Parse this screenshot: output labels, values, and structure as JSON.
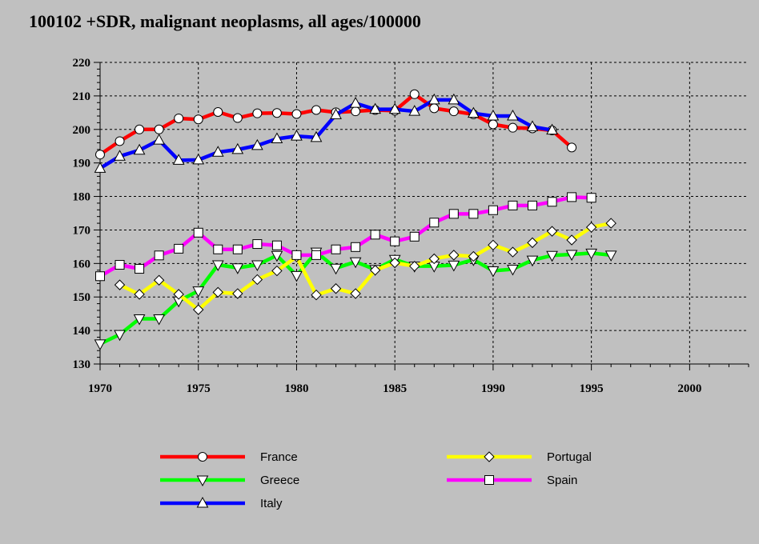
{
  "chart_data": {
    "type": "line",
    "title": "100102 +SDR, malignant neoplasms, all ages/100000",
    "xlabel": "",
    "ylabel": "",
    "xlim": [
      1970,
      2003
    ],
    "ylim": [
      130,
      220
    ],
    "xticks": [
      1970,
      1975,
      1980,
      1985,
      1990,
      1995,
      2000
    ],
    "yticks": [
      130,
      140,
      150,
      160,
      170,
      180,
      190,
      200,
      210,
      220
    ],
    "grid": true,
    "legend_position": "bottom",
    "series": [
      {
        "name": "France",
        "color": "#ff0000",
        "marker": "circle",
        "x": [
          1970,
          1971,
          1972,
          1973,
          1974,
          1975,
          1976,
          1977,
          1978,
          1979,
          1980,
          1981,
          1982,
          1983,
          1984,
          1985,
          1986,
          1987,
          1988,
          1989,
          1990,
          1991,
          1992,
          1993,
          1994
        ],
        "y": [
          192.5,
          196.5,
          200,
          200,
          203.3,
          203,
          205.2,
          203.4,
          204.8,
          204.9,
          204.6,
          205.8,
          205.1,
          205.4,
          205.8,
          205.6,
          210.5,
          206.3,
          205.4,
          204.5,
          201.5,
          200.5,
          200.3,
          199.7,
          194.6
        ]
      },
      {
        "name": "Greece",
        "color": "#00ff00",
        "marker": "triangle-down",
        "x": [
          1970,
          1971,
          1972,
          1973,
          1974,
          1975,
          1976,
          1977,
          1978,
          1979,
          1980,
          1981,
          1982,
          1983,
          1984,
          1985,
          1986,
          1987,
          1988,
          1989,
          1990,
          1991,
          1992,
          1993,
          1994,
          1995,
          1996
        ],
        "y": [
          136,
          138.8,
          143.5,
          143.5,
          148.8,
          151.8,
          159.6,
          158.7,
          159.6,
          162.4,
          156.4,
          163.4,
          158.6,
          160.5,
          158.2,
          161.2,
          159.2,
          159.2,
          159.5,
          161.1,
          157.8,
          158.3,
          161,
          162.4,
          162.7,
          163.1,
          162.5
        ]
      },
      {
        "name": "Italy",
        "color": "#0000ff",
        "marker": "triangle-up",
        "x": [
          1970,
          1971,
          1972,
          1973,
          1974,
          1975,
          1976,
          1977,
          1978,
          1979,
          1980,
          1981,
          1982,
          1983,
          1984,
          1985,
          1986,
          1987,
          1988,
          1989,
          1990,
          1991,
          1992,
          1993
        ],
        "y": [
          188.4,
          192,
          193.8,
          196.8,
          190.8,
          190.9,
          193.2,
          194,
          195.2,
          197.2,
          198,
          197.6,
          204.4,
          207.8,
          206,
          206,
          205.4,
          208.8,
          208.8,
          204.8,
          204,
          204,
          200.8,
          199.8
        ]
      },
      {
        "name": "Portugal",
        "color": "#ffff00",
        "marker": "diamond",
        "x": [
          1971,
          1972,
          1973,
          1974,
          1975,
          1976,
          1977,
          1978,
          1979,
          1980,
          1981,
          1982,
          1983,
          1984,
          1985,
          1986,
          1987,
          1988,
          1989,
          1990,
          1991,
          1992,
          1993,
          1994,
          1995,
          1996
        ],
        "y": [
          153.6,
          150.8,
          155,
          150.8,
          146.2,
          151.4,
          151,
          155.2,
          157.8,
          162,
          150.6,
          152.5,
          151,
          158,
          160.2,
          159.2,
          161.4,
          162.5,
          162.1,
          165.5,
          163.4,
          166.2,
          169.6,
          167,
          170.8,
          172
        ]
      },
      {
        "name": "Spain",
        "color": "#ff00ff",
        "marker": "square",
        "x": [
          1970,
          1971,
          1972,
          1973,
          1974,
          1975,
          1976,
          1977,
          1978,
          1979,
          1980,
          1981,
          1982,
          1983,
          1984,
          1985,
          1986,
          1987,
          1988,
          1989,
          1990,
          1991,
          1992,
          1993,
          1994,
          1995
        ],
        "y": [
          156.2,
          159.6,
          158.4,
          162.4,
          164.4,
          169.2,
          164.2,
          164.2,
          165.8,
          165.4,
          162.5,
          162.5,
          164.2,
          164.9,
          168.6,
          166.6,
          168,
          172.2,
          174.8,
          174.8,
          175.9,
          177.3,
          177.3,
          178.4,
          179.8,
          179.6
        ]
      }
    ]
  }
}
